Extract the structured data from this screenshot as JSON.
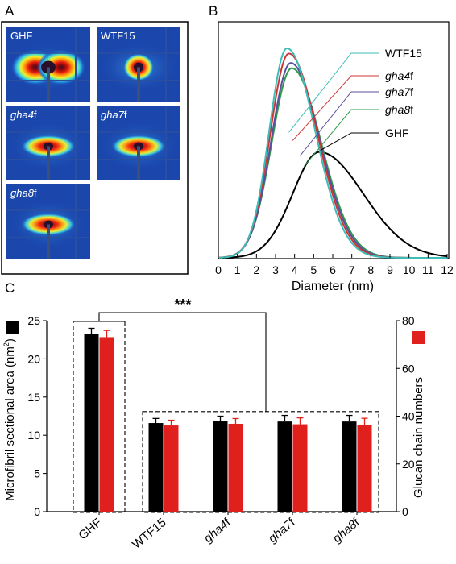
{
  "panel_labels": {
    "a": "A",
    "b": "B",
    "c": "C"
  },
  "panel_a": {
    "images": [
      {
        "label": "GHF",
        "italic": "",
        "suffix": "",
        "pattern": "wide"
      },
      {
        "label": "WTF15",
        "italic": "",
        "suffix": "",
        "pattern": "round"
      },
      {
        "label": "",
        "italic": "gha4",
        "suffix": "f",
        "pattern": "flat"
      },
      {
        "label": "",
        "italic": "gha7",
        "suffix": "f",
        "pattern": "flat"
      },
      {
        "label": "",
        "italic": "gha8",
        "suffix": "f",
        "pattern": "flat"
      }
    ]
  },
  "chart_data": [
    {
      "type": "line",
      "panel": "B",
      "xlabel": "Diameter (nm)",
      "xlim": [
        0,
        12
      ],
      "xticks": [
        "0",
        "1",
        "2",
        "3",
        "4",
        "5",
        "6",
        "7",
        "8",
        "9",
        "10",
        "11",
        "12"
      ],
      "ylabel": "",
      "y_axis_ticks_labeled": false,
      "legend_placement": "right",
      "series": [
        {
          "name": "WTF15",
          "italic": "",
          "suffix": "",
          "color": "#3dbdb8",
          "peak_x": 3.6,
          "peak_y": 1.0,
          "sigma_left": 0.93,
          "sigma_right": 1.48
        },
        {
          "name": "",
          "italic": "gha4",
          "suffix": "f",
          "color": "#cc3535",
          "peak_x": 3.7,
          "peak_y": 0.975,
          "sigma_left": 0.98,
          "sigma_right": 1.5
        },
        {
          "name": "",
          "italic": "gha7",
          "suffix": "f",
          "color": "#5a4f9e",
          "peak_x": 3.8,
          "peak_y": 0.93,
          "sigma_left": 1.02,
          "sigma_right": 1.52
        },
        {
          "name": "",
          "italic": "gha8",
          "suffix": "f",
          "color": "#2e9a4c",
          "peak_x": 3.85,
          "peak_y": 0.905,
          "sigma_left": 1.05,
          "sigma_right": 1.55
        },
        {
          "name": "GHF",
          "italic": "",
          "suffix": "",
          "color": "#000000",
          "peak_x": 5.3,
          "peak_y": 0.505,
          "sigma_left": 1.4,
          "sigma_right": 2.3
        }
      ]
    },
    {
      "type": "bar",
      "panel": "C",
      "categories": [
        {
          "name": "GHF",
          "italic": "",
          "suffix": ""
        },
        {
          "name": "WTF15",
          "italic": "",
          "suffix": ""
        },
        {
          "name": "",
          "italic": "gha4",
          "suffix": "f"
        },
        {
          "name": "",
          "italic": "gha7",
          "suffix": "f"
        },
        {
          "name": "",
          "italic": "gha8",
          "suffix": "f"
        }
      ],
      "series": [
        {
          "name": "Microfibril sectional area",
          "axis": "left",
          "color": "#000000",
          "values": [
            23.3,
            11.6,
            11.9,
            11.8,
            11.8
          ],
          "errors": [
            0.7,
            0.6,
            0.6,
            0.8,
            0.8
          ]
        },
        {
          "name": "Glucan chain numbers",
          "axis": "right",
          "color": "#e0201c",
          "values": [
            73.1,
            36.1,
            36.8,
            36.6,
            36.4
          ],
          "errors": [
            2.8,
            2.2,
            2.2,
            2.7,
            2.7
          ]
        }
      ],
      "ylabel_left": "Microfibril sectional  area (nm",
      "ylabel_left_sup": "2",
      "ylabel_left_end": ")",
      "ylabel_right": "Glucan chain numbers",
      "ylim_left": [
        0,
        25
      ],
      "yticks_left": [
        "0",
        "5",
        "10",
        "15",
        "20",
        "25"
      ],
      "ylim_right": [
        0,
        80
      ],
      "yticks_right": [
        "0",
        "20",
        "40",
        "60",
        "80"
      ],
      "significance": "***",
      "grid": false
    }
  ]
}
